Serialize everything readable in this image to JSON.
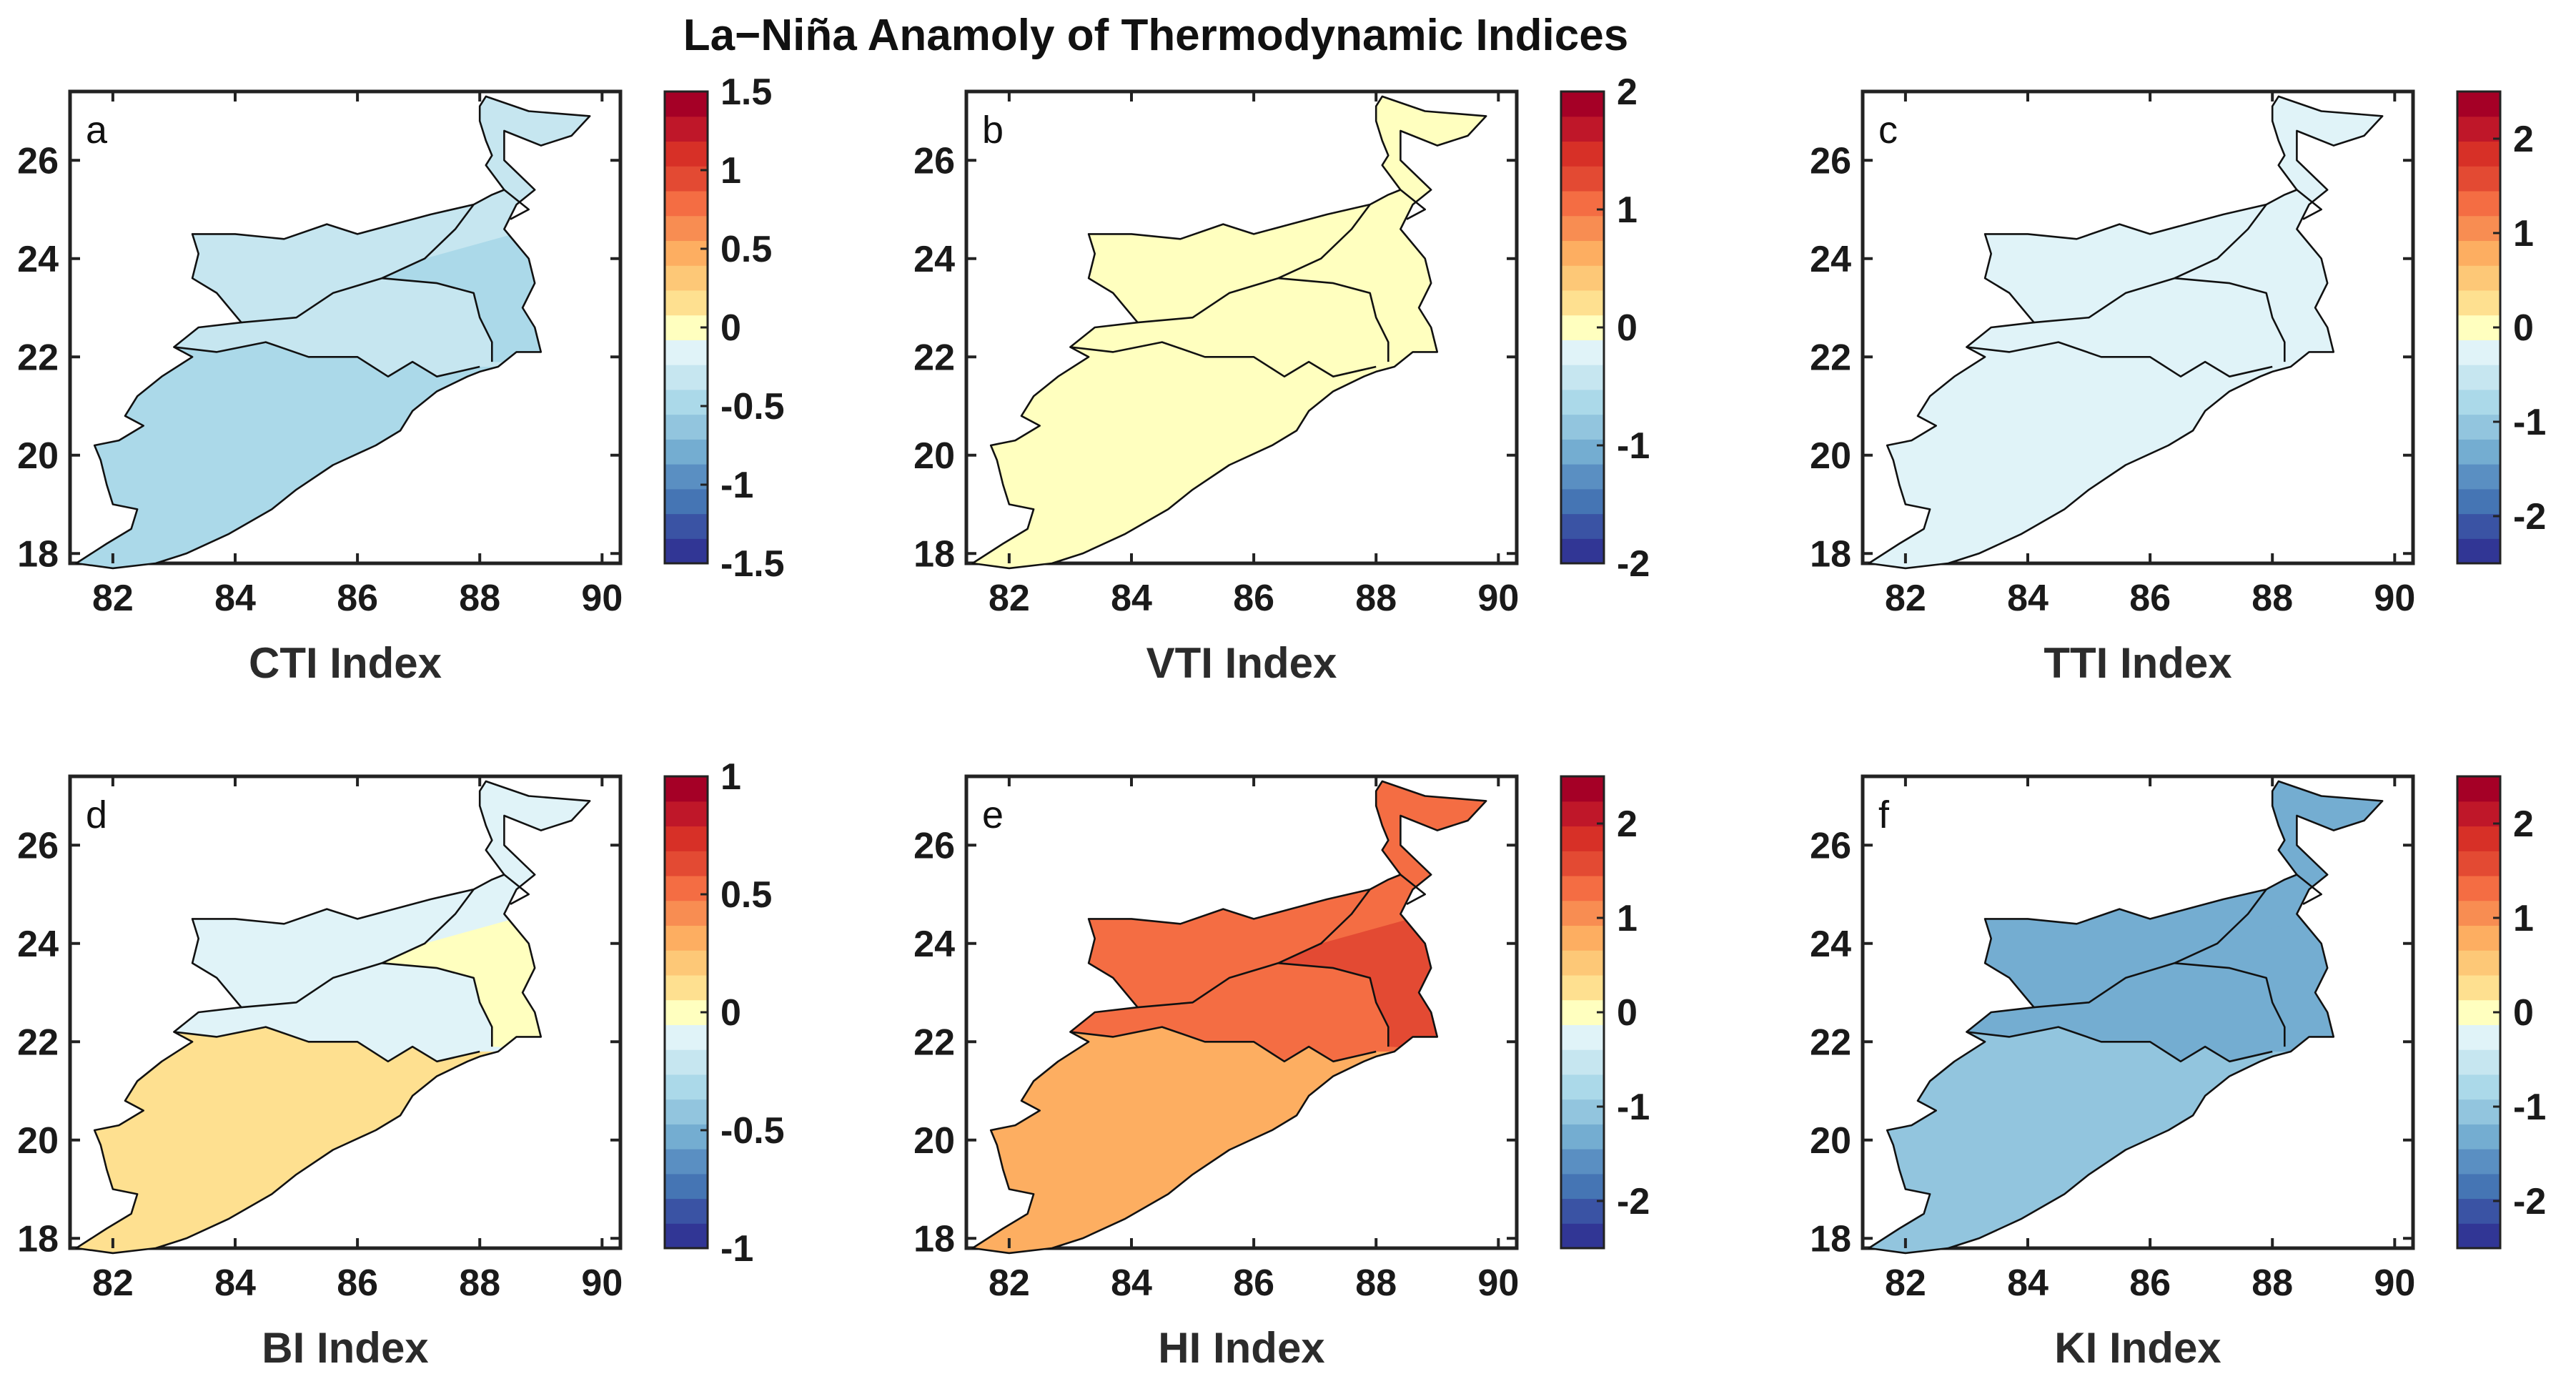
{
  "figure": {
    "title": "La−Niña Anamoly of Thermodynamic Indices",
    "colormap": [
      "#313695",
      "#3a53a4",
      "#4575b4",
      "#5a8fc2",
      "#74add1",
      "#92c5de",
      "#abd9e9",
      "#c6e6f0",
      "#e0f3f8",
      "#ffffbf",
      "#fee090",
      "#fdc877",
      "#fdae61",
      "#f88d52",
      "#f46d43",
      "#e34a33",
      "#d73027",
      "#bf1729",
      "#a50026"
    ],
    "boundary_color": "#111111"
  },
  "chart_data": [
    {
      "type": "heatmap",
      "panel_label": "a",
      "xlabel": "CTI Index",
      "x_ticks": [
        "82",
        "84",
        "86",
        "88",
        "90"
      ],
      "y_ticks": [
        "18",
        "20",
        "22",
        "24",
        "26"
      ],
      "xlim": [
        81.3,
        90.3
      ],
      "ylim": [
        17.8,
        27.4
      ],
      "colorbar": {
        "range": [
          -1.5,
          1.5
        ],
        "ticks": [
          "1.5",
          "1",
          "0.5",
          "0",
          "-0.5",
          "-1",
          "-1.5"
        ]
      },
      "region_values": {
        "north_east": -0.35,
        "central_east": -0.42,
        "central_west": -0.38,
        "south": -0.45
      }
    },
    {
      "type": "heatmap",
      "panel_label": "b",
      "xlabel": "VTI Index",
      "x_ticks": [
        "82",
        "84",
        "86",
        "88",
        "90"
      ],
      "y_ticks": [
        "18",
        "20",
        "22",
        "24",
        "26"
      ],
      "xlim": [
        81.3,
        90.3
      ],
      "ylim": [
        17.8,
        27.4
      ],
      "colorbar": {
        "range": [
          -2,
          2
        ],
        "ticks": [
          "2",
          "1",
          "0",
          "-1",
          "-2"
        ]
      },
      "region_values": {
        "north_east": 0.1,
        "central_east": 0.1,
        "central_west": 0.1,
        "south": 0.05
      }
    },
    {
      "type": "heatmap",
      "panel_label": "c",
      "xlabel": "TTI Index",
      "x_ticks": [
        "82",
        "84",
        "86",
        "88",
        "90"
      ],
      "y_ticks": [
        "18",
        "20",
        "22",
        "24",
        "26"
      ],
      "xlim": [
        81.3,
        90.3
      ],
      "ylim": [
        17.8,
        27.4
      ],
      "colorbar": {
        "range": [
          -2.5,
          2.5
        ],
        "ticks": [
          "2",
          "1",
          "0",
          "-1",
          "-2"
        ]
      },
      "region_values": {
        "north_east": -0.3,
        "central_east": -0.35,
        "central_west": -0.3,
        "south": -0.35
      }
    },
    {
      "type": "heatmap",
      "panel_label": "d",
      "xlabel": "BI Index",
      "x_ticks": [
        "82",
        "84",
        "86",
        "88",
        "90"
      ],
      "y_ticks": [
        "18",
        "20",
        "22",
        "24",
        "26"
      ],
      "xlim": [
        81.3,
        90.3
      ],
      "ylim": [
        17.8,
        27.4
      ],
      "colorbar": {
        "range": [
          -1,
          1
        ],
        "ticks": [
          "1",
          "0.5",
          "0",
          "-0.5",
          "-1"
        ]
      },
      "region_values": {
        "north_east": -0.1,
        "central_east": 0.05,
        "central_west": -0.08,
        "south": 0.06
      }
    },
    {
      "type": "heatmap",
      "panel_label": "e",
      "xlabel": "HI Index",
      "x_ticks": [
        "82",
        "84",
        "86",
        "88",
        "90"
      ],
      "y_ticks": [
        "18",
        "20",
        "22",
        "24",
        "26"
      ],
      "xlim": [
        81.3,
        90.3
      ],
      "ylim": [
        17.8,
        27.4
      ],
      "colorbar": {
        "range": [
          -2.5,
          2.5
        ],
        "ticks": [
          "2",
          "1",
          "0",
          "-1",
          "-2"
        ]
      },
      "region_values": {
        "north_east": 1.2,
        "central_east": 1.45,
        "central_west": 1.2,
        "south": 0.9
      }
    },
    {
      "type": "heatmap",
      "panel_label": "f",
      "xlabel": "KI Index",
      "x_ticks": [
        "82",
        "84",
        "86",
        "88",
        "90"
      ],
      "y_ticks": [
        "18",
        "20",
        "22",
        "24",
        "26"
      ],
      "xlim": [
        81.3,
        90.3
      ],
      "ylim": [
        17.8,
        27.4
      ],
      "colorbar": {
        "range": [
          -2.5,
          2.5
        ],
        "ticks": [
          "2",
          "1",
          "0",
          "-1",
          "-2"
        ]
      },
      "region_values": {
        "north_east": -1.3,
        "central_east": -1.2,
        "central_west": -1.25,
        "south": -1.0
      }
    }
  ]
}
